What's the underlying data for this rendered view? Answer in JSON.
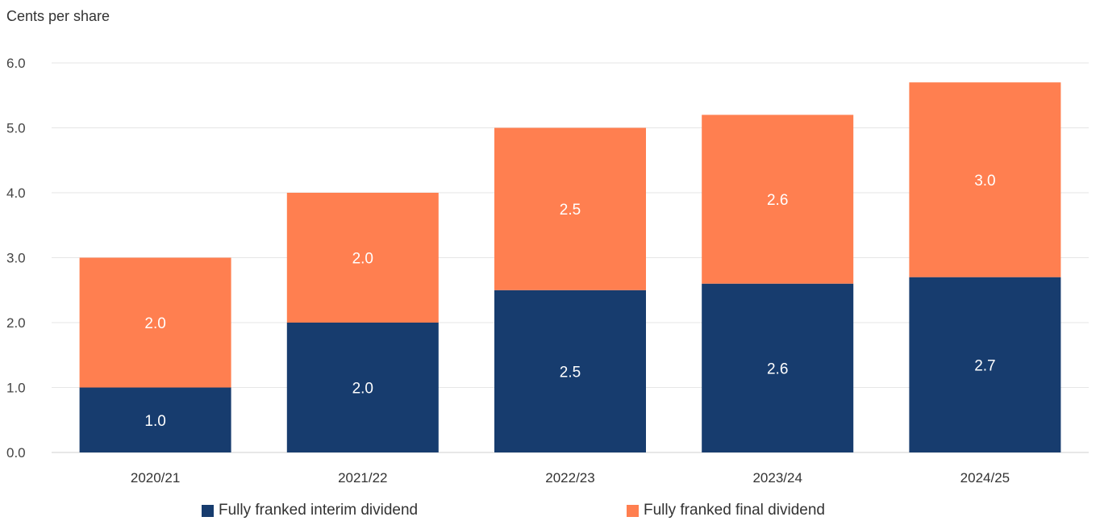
{
  "chart_data": {
    "type": "bar",
    "stacked": true,
    "ylabel": "Cents per share",
    "ylim": [
      0,
      6
    ],
    "yticks": [
      "0.0",
      "1.0",
      "2.0",
      "3.0",
      "4.0",
      "5.0",
      "6.0"
    ],
    "grid": true,
    "legend_position": "bottom",
    "categories": [
      "2020/21",
      "2021/22",
      "2022/23",
      "2023/24",
      "2024/25"
    ],
    "series": [
      {
        "name": "Fully franked interim dividend",
        "color": "#173c6e",
        "values": [
          1.0,
          2.0,
          2.5,
          2.6,
          2.7
        ],
        "labels": [
          "1.0",
          "2.0",
          "2.5",
          "2.6",
          "2.7"
        ]
      },
      {
        "name": "Fully franked final dividend",
        "color": "#ff7f50",
        "values": [
          2.0,
          2.0,
          2.5,
          2.6,
          3.0
        ],
        "labels": [
          "2.0",
          "2.0",
          "2.5",
          "2.6",
          "3.0"
        ]
      }
    ]
  }
}
